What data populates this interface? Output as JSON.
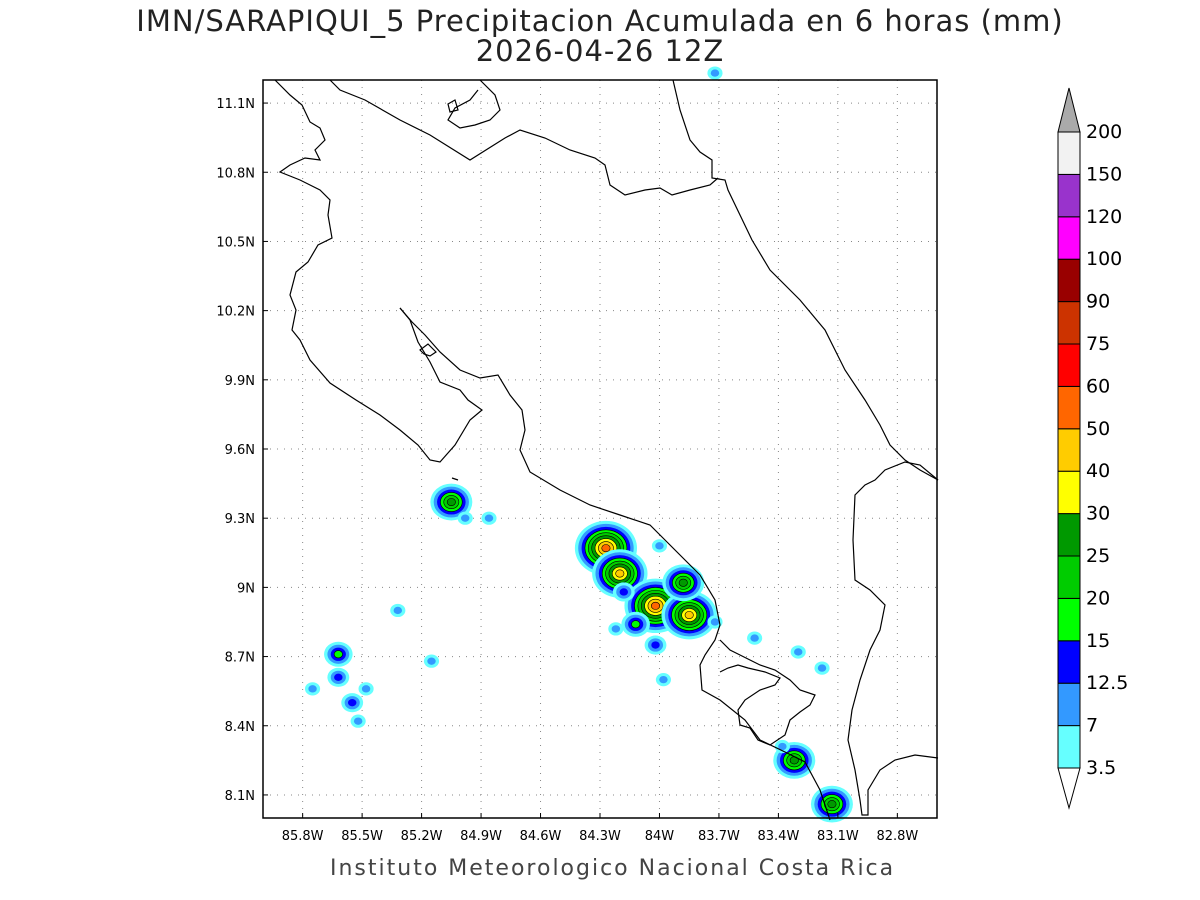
{
  "title": {
    "line1": "IMN/SARAPIQUI_5 Precipitacion Acumulada en 6 horas (mm)",
    "line2": "2026-04-26 12Z"
  },
  "footer": "Instituto Meteorologico Nacional Costa Rica",
  "map": {
    "lon_min": -86.0,
    "lon_max": -82.6,
    "lat_min": 8.0,
    "lat_max": 11.2,
    "lon_ticks": [
      {
        "value": -85.8,
        "label": "85.8W"
      },
      {
        "value": -85.5,
        "label": "85.5W"
      },
      {
        "value": -85.2,
        "label": "85.2W"
      },
      {
        "value": -84.9,
        "label": "84.9W"
      },
      {
        "value": -84.6,
        "label": "84.6W"
      },
      {
        "value": -84.3,
        "label": "84.3W"
      },
      {
        "value": -84.0,
        "label": "84W"
      },
      {
        "value": -83.7,
        "label": "83.7W"
      },
      {
        "value": -83.4,
        "label": "83.4W"
      },
      {
        "value": -83.1,
        "label": "83.1W"
      },
      {
        "value": -82.8,
        "label": "82.8W"
      }
    ],
    "lat_ticks": [
      {
        "value": 11.1,
        "label": "11.1N"
      },
      {
        "value": 10.8,
        "label": "10.8N"
      },
      {
        "value": 10.5,
        "label": "10.5N"
      },
      {
        "value": 10.2,
        "label": "10.2N"
      },
      {
        "value": 9.9,
        "label": "9.9N"
      },
      {
        "value": 9.6,
        "label": "9.6N"
      },
      {
        "value": 9.3,
        "label": "9.3N"
      },
      {
        "value": 9.0,
        "label": "9N"
      },
      {
        "value": 8.7,
        "label": "8.7N"
      },
      {
        "value": 8.4,
        "label": "8.4N"
      },
      {
        "value": 8.1,
        "label": "8.1N"
      }
    ],
    "grid": true
  },
  "colorbar": {
    "levels": [
      {
        "label": "3.5",
        "color": "#66ffff"
      },
      {
        "label": "7",
        "color": "#3399ff"
      },
      {
        "label": "12.5",
        "color": "#0000ff"
      },
      {
        "label": "15",
        "color": "#00ff00"
      },
      {
        "label": "20",
        "color": "#00cc00"
      },
      {
        "label": "25",
        "color": "#009900"
      },
      {
        "label": "30",
        "color": "#ffff00"
      },
      {
        "label": "40",
        "color": "#ffcc00"
      },
      {
        "label": "50",
        "color": "#ff6600"
      },
      {
        "label": "60",
        "color": "#ff0000"
      },
      {
        "label": "75",
        "color": "#cc3300"
      },
      {
        "label": "90",
        "color": "#990000"
      },
      {
        "label": "100",
        "color": "#ff00ff"
      },
      {
        "label": "120",
        "color": "#9933cc"
      },
      {
        "label": "150",
        "color": "#f2f2f2"
      },
      {
        "label": "200",
        "color": "#aaaaaa"
      }
    ]
  },
  "cells": [
    {
      "lon": -84.27,
      "lat": 9.17,
      "level": 8
    },
    {
      "lon": -84.2,
      "lat": 9.06,
      "level": 7
    },
    {
      "lon": -84.02,
      "lat": 8.92,
      "level": 8
    },
    {
      "lon": -83.85,
      "lat": 8.88,
      "level": 7
    },
    {
      "lon": -83.88,
      "lat": 9.02,
      "level": 5
    },
    {
      "lon": -85.05,
      "lat": 9.37,
      "level": 5
    },
    {
      "lon": -83.32,
      "lat": 8.25,
      "level": 5
    },
    {
      "lon": -83.13,
      "lat": 8.06,
      "level": 5
    },
    {
      "lon": -85.62,
      "lat": 8.71,
      "level": 3
    },
    {
      "lon": -85.62,
      "lat": 8.61,
      "level": 2
    },
    {
      "lon": -85.55,
      "lat": 8.5,
      "level": 2
    },
    {
      "lon": -84.12,
      "lat": 8.84,
      "level": 3
    },
    {
      "lon": -84.02,
      "lat": 8.75,
      "level": 2
    },
    {
      "lon": -83.52,
      "lat": 8.78,
      "level": 1
    },
    {
      "lon": -84.98,
      "lat": 9.3,
      "level": 1
    },
    {
      "lon": -84.86,
      "lat": 9.3,
      "level": 1
    },
    {
      "lon": -84.0,
      "lat": 9.18,
      "level": 1
    },
    {
      "lon": -84.18,
      "lat": 8.98,
      "level": 2
    },
    {
      "lon": -83.72,
      "lat": 8.85,
      "level": 1
    },
    {
      "lon": -83.38,
      "lat": 8.31,
      "level": 1
    },
    {
      "lon": -83.3,
      "lat": 8.72,
      "level": 1
    },
    {
      "lon": -85.75,
      "lat": 8.56,
      "level": 1
    },
    {
      "lon": -85.48,
      "lat": 8.56,
      "level": 1
    },
    {
      "lon": -85.52,
      "lat": 8.42,
      "level": 1
    },
    {
      "lon": -84.22,
      "lat": 8.82,
      "level": 1
    },
    {
      "lon": -83.98,
      "lat": 8.6,
      "level": 1
    },
    {
      "lon": -85.15,
      "lat": 8.68,
      "level": 1
    },
    {
      "lon": -85.32,
      "lat": 8.9,
      "level": 1
    },
    {
      "lon": -83.72,
      "lat": 11.23,
      "level": 1
    },
    {
      "lon": -83.18,
      "lat": 8.65,
      "level": 1
    }
  ]
}
